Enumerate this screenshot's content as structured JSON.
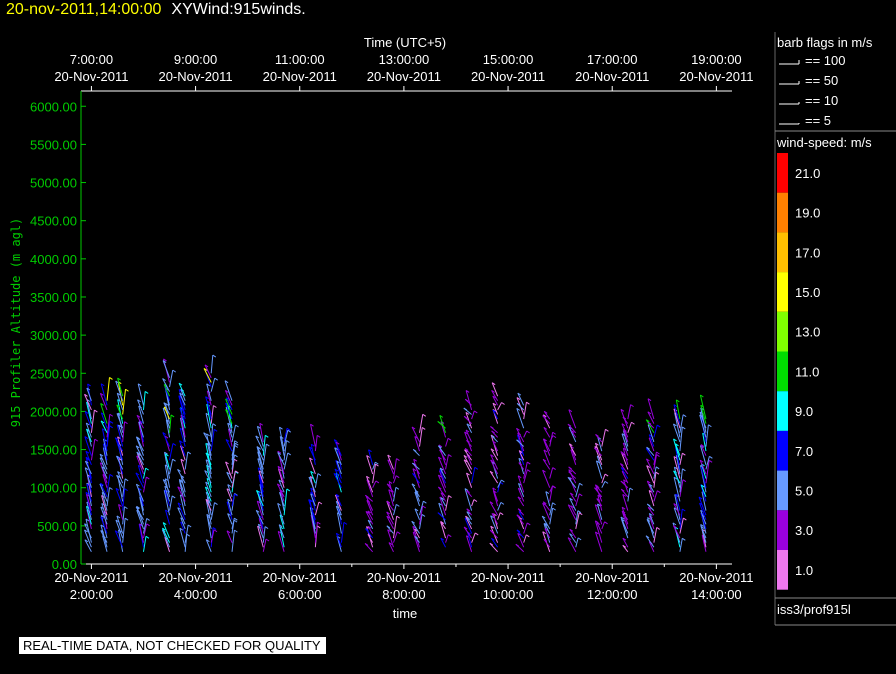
{
  "header": {
    "datetime": "20-nov-2011,14:00:00",
    "product": "XYWind:915winds."
  },
  "footer": {
    "quality_note": "REAL-TIME DATA, NOT CHECKED FOR QUALITY"
  },
  "legend": {
    "barb_title": "barb flags in m/s",
    "barb_entries": [
      "== 100",
      "== 50",
      "== 10",
      "== 5"
    ],
    "speed_title": "wind-speed: m/s",
    "speed_ticks": [
      "21.0",
      "19.0",
      "17.0",
      "15.0",
      "13.0",
      "11.0",
      "9.0",
      "7.0",
      "5.0",
      "3.0",
      "1.0"
    ],
    "colors": [
      "#ff0000",
      "#ff8000",
      "#ffbf00",
      "#ffff00",
      "#80ff00",
      "#00dd00",
      "#00ffff",
      "#0000ff",
      "#6699ff",
      "#9900dd",
      "#ee77ee"
    ],
    "source": "iss3/prof915l"
  },
  "chart_data": {
    "type": "wind-barb",
    "top_axis": {
      "label": "Time (UTC+5)",
      "ticks": [
        {
          "time": "7:00:00",
          "date": "20-Nov-2011"
        },
        {
          "time": "9:00:00",
          "date": "20-Nov-2011"
        },
        {
          "time": "11:00:00",
          "date": "20-Nov-2011"
        },
        {
          "time": "13:00:00",
          "date": "20-Nov-2011"
        },
        {
          "time": "15:00:00",
          "date": "20-Nov-2011"
        },
        {
          "time": "17:00:00",
          "date": "20-Nov-2011"
        },
        {
          "time": "19:00:00",
          "date": "20-Nov-2011"
        }
      ]
    },
    "bottom_axis": {
      "label": "time",
      "ticks": [
        {
          "time": "2:00:00",
          "date": "20-Nov-2011"
        },
        {
          "time": "4:00:00",
          "date": "20-Nov-2011"
        },
        {
          "time": "6:00:00",
          "date": "20-Nov-2011"
        },
        {
          "time": "8:00:00",
          "date": "20-Nov-2011"
        },
        {
          "time": "10:00:00",
          "date": "20-Nov-2011"
        },
        {
          "time": "12:00:00",
          "date": "20-Nov-2011"
        },
        {
          "time": "14:00:00",
          "date": "20-Nov-2011"
        }
      ],
      "range_hours": [
        1.8,
        14.3
      ]
    },
    "y_axis": {
      "label": "915 Profiler Altitude (m agl)",
      "ticks": [
        "0.00",
        "500.00",
        "1000.00",
        "1500.00",
        "2000.00",
        "2500.00",
        "3000.00",
        "3500.00",
        "4000.00",
        "4500.00",
        "5000.00",
        "5500.00",
        "6000.00"
      ],
      "ylim": [
        0,
        6200
      ]
    },
    "profile_hours": [
      2.0,
      2.3,
      2.6,
      3.0,
      3.5,
      3.8,
      4.3,
      4.7,
      5.3,
      5.7,
      6.3,
      6.8,
      7.4,
      7.8,
      8.3,
      8.8,
      9.3,
      9.8,
      10.3,
      10.8,
      11.3,
      11.8,
      12.3,
      12.8,
      13.3,
      13.8
    ],
    "profile_top_m": [
      2150,
      2150,
      2200,
      2100,
      2450,
      2200,
      2500,
      2250,
      1700,
      1650,
      1550,
      1500,
      1300,
      1400,
      1750,
      1800,
      2100,
      2250,
      2100,
      1900,
      1800,
      1650,
      1950,
      1950,
      1950,
      1900
    ]
  }
}
